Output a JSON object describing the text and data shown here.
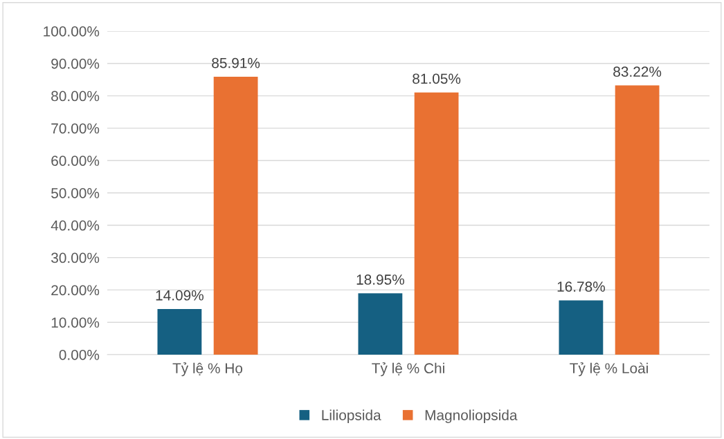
{
  "chart_data": {
    "type": "bar",
    "categories": [
      "Tỷ lệ % Họ",
      "Tỷ lệ % Chi",
      "Tỷ lệ % Loài"
    ],
    "series": [
      {
        "name": "Liliopsida",
        "color": "#156082",
        "values": [
          14.09,
          18.95,
          16.78
        ],
        "value_labels": [
          "14.09%",
          "18.95%",
          "16.78%"
        ]
      },
      {
        "name": "Magnoliopsida",
        "color": "#e97132",
        "values": [
          85.91,
          81.05,
          83.22
        ],
        "value_labels": [
          "85.91%",
          "81.05%",
          "83.22%"
        ]
      }
    ],
    "ylim": [
      0,
      100
    ],
    "yticks": [
      {
        "value": 0,
        "label": "0.00%"
      },
      {
        "value": 10,
        "label": "10.00%"
      },
      {
        "value": 20,
        "label": "20.00%"
      },
      {
        "value": 30,
        "label": "30.00%"
      },
      {
        "value": 40,
        "label": "40.00%"
      },
      {
        "value": 50,
        "label": "50.00%"
      },
      {
        "value": 60,
        "label": "60.00%"
      },
      {
        "value": 70,
        "label": "70.00%"
      },
      {
        "value": 80,
        "label": "80.00%"
      },
      {
        "value": 90,
        "label": "90.00%"
      },
      {
        "value": 100,
        "label": "100.00%"
      }
    ],
    "grid": "y",
    "legend": "bottom"
  }
}
